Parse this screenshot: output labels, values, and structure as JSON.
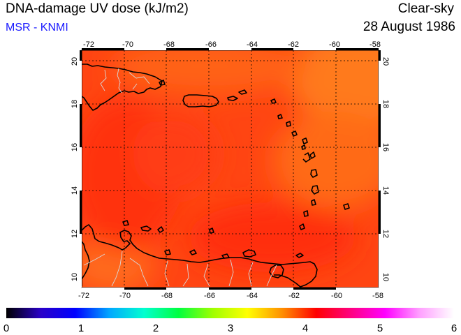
{
  "header": {
    "title": "DNA-damage UV dose (kJ/m2)",
    "source": "MSR - KNMI",
    "sky_condition": "Clear-sky",
    "date": "28 August 1986"
  },
  "map": {
    "lon_range": [
      -72,
      -58
    ],
    "lat_range": [
      9.5,
      20.5
    ],
    "lon_ticks": [
      "-72",
      "-70",
      "-68",
      "-66",
      "-64",
      "-62",
      "-60",
      "-58"
    ],
    "lat_ticks": [
      "10",
      "12",
      "14",
      "16",
      "18",
      "20"
    ],
    "field_color": "#ff4a14",
    "grid": "dotted"
  },
  "colorbar": {
    "min": 0,
    "max": 6,
    "labels": [
      "0",
      "1",
      "2",
      "3",
      "4",
      "5",
      "6"
    ],
    "stops": [
      "#000000",
      "#2a00c8",
      "#0000ff",
      "#00a8ff",
      "#00ffd0",
      "#00ff40",
      "#a0ff00",
      "#ffff00",
      "#ff9000",
      "#ff0000",
      "#ff0080",
      "#ff00ff",
      "#ffa0ff",
      "#ffffff"
    ]
  }
}
